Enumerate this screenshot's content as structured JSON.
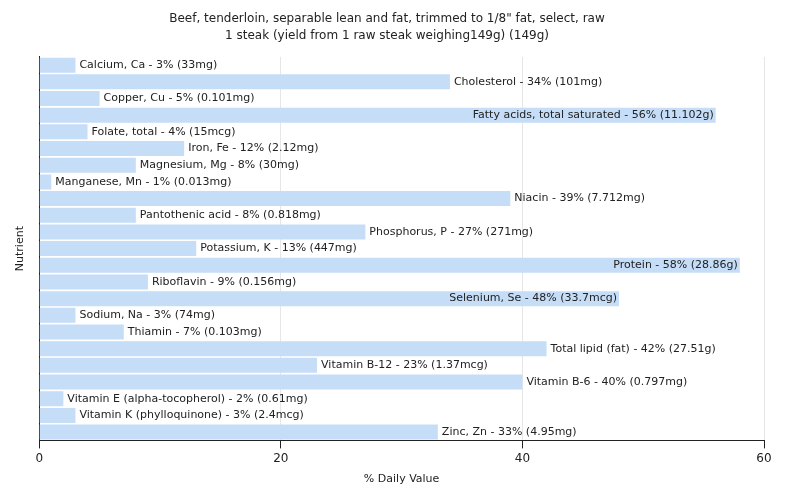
{
  "chart_data": {
    "type": "bar",
    "title": "Beef, tenderloin, separable lean and fat, trimmed to 1/8\" fat, select, raw",
    "subtitle": "1 steak (yield from 1 raw steak weighing149g) (149g)",
    "xlabel": "% Daily Value",
    "ylabel": "Nutrient",
    "orientation": "horizontal",
    "categories": [
      "Calcium, Ca",
      "Cholesterol",
      "Copper, Cu",
      "Fatty acids, total saturated",
      "Folate, total",
      "Iron, Fe",
      "Magnesium, Mg",
      "Manganese, Mn",
      "Niacin",
      "Pantothenic acid",
      "Phosphorus, P",
      "Potassium, K",
      "Protein",
      "Riboflavin",
      "Selenium, Se",
      "Sodium, Na",
      "Thiamin",
      "Total lipid (fat)",
      "Vitamin B-12",
      "Vitamin B-6",
      "Vitamin E (alpha-tocopherol)",
      "Vitamin K (phylloquinone)",
      "Zinc, Zn"
    ],
    "values": [
      3,
      34,
      5,
      56,
      4,
      12,
      8,
      1,
      39,
      8,
      27,
      13,
      58,
      9,
      48,
      3,
      7,
      42,
      23,
      40,
      2,
      3,
      33
    ],
    "value_labels": [
      "Calcium, Ca - 3% (33mg)",
      "Cholesterol - 34% (101mg)",
      "Copper, Cu - 5% (0.101mg)",
      "Fatty acids, total saturated - 56% (11.102g)",
      "Folate, total - 4% (15mcg)",
      "Iron, Fe - 12% (2.12mg)",
      "Magnesium, Mg - 8% (30mg)",
      "Manganese, Mn - 1% (0.013mg)",
      "Niacin - 39% (7.712mg)",
      "Pantothenic acid - 8% (0.818mg)",
      "Phosphorus, P - 27% (271mg)",
      "Potassium, K - 13% (447mg)",
      "Protein - 58% (28.86g)",
      "Riboflavin - 9% (0.156mg)",
      "Selenium, Se - 48% (33.7mcg)",
      "Sodium, Na - 3% (74mg)",
      "Thiamin - 7% (0.103mg)",
      "Total lipid (fat) - 42% (27.51g)",
      "Vitamin B-12 - 23% (1.37mcg)",
      "Vitamin B-6 - 40% (0.797mg)",
      "Vitamin E (alpha-tocopherol) - 2% (0.61mg)",
      "Vitamin K (phylloquinone) - 3% (2.4mcg)",
      "Zinc, Zn - 33% (4.95mg)"
    ],
    "color": "#c6ddf7",
    "xlim": [
      0,
      60
    ],
    "xticks": [
      0,
      20,
      40,
      60
    ],
    "grid": true,
    "data_labels": true,
    "tick_labels": "x"
  }
}
